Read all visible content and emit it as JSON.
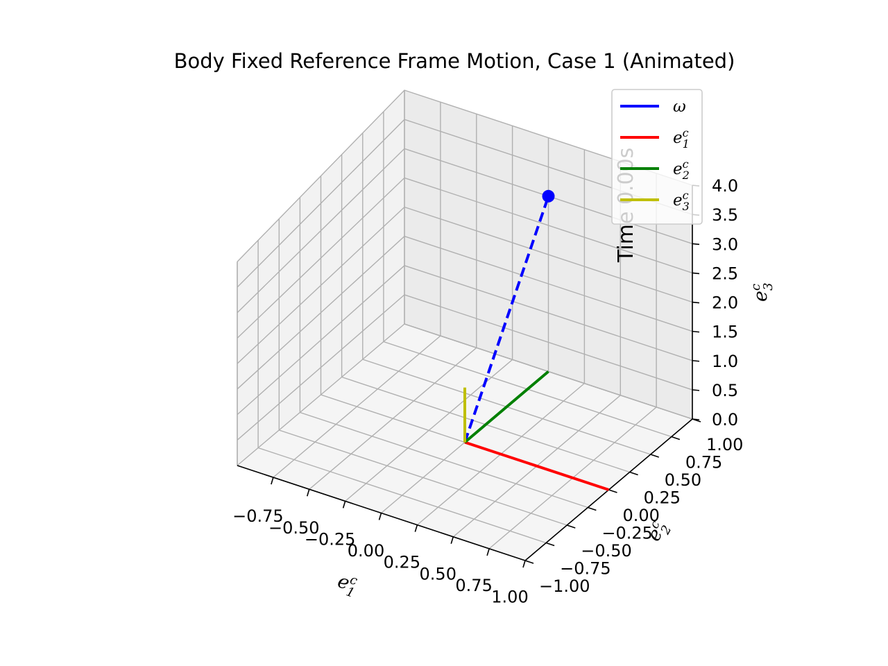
{
  "title": "Body Fixed Reference Frame Motion, Case 1 (Animated)",
  "time_text": "Time 0.00s",
  "colors": {
    "omega": "#0000ff",
    "e1": "#ff0000",
    "e2": "#008000",
    "e3": "#bfbf00",
    "pane": "#f2f2f2",
    "grid": "#b0b0b0"
  },
  "chart_data": {
    "type": "line",
    "projection": "3d",
    "title": "Body Fixed Reference Frame Motion, Case 1 (Animated)",
    "xlabel": {
      "base": "e",
      "sup": "c",
      "sub": "1"
    },
    "ylabel": {
      "base": "e",
      "sup": "c",
      "sub": "2"
    },
    "zlabel": {
      "base": "e",
      "sup": "c",
      "sub": "3"
    },
    "xlim": [
      -1.0,
      1.0
    ],
    "ylim": [
      -1.0,
      1.0
    ],
    "zlim": [
      0.0,
      4.0
    ],
    "xticks": [
      "−0.75",
      "−0.50",
      "−0.25",
      "0.00",
      "0.25",
      "0.50",
      "0.75",
      "1.00"
    ],
    "yticks": [
      "−1.00",
      "−0.75",
      "−0.50",
      "−0.25",
      "0.00",
      "0.25",
      "0.50",
      "0.75",
      "1.00"
    ],
    "zticks": [
      "0.0",
      "0.5",
      "1.0",
      "1.5",
      "2.0",
      "2.5",
      "3.0",
      "3.5",
      "4.0"
    ],
    "grid": true,
    "legend_location": "upper right",
    "series": [
      {
        "name": "ω",
        "label_base": "ω",
        "label_sup": "",
        "label_sub": "",
        "color": "#0000ff",
        "style": "solid",
        "start": [
          0,
          0,
          0
        ],
        "end": [
          0,
          0,
          0
        ]
      },
      {
        "name": "e1c",
        "label_base": "e",
        "label_sup": "c",
        "label_sub": "1",
        "color": "#ff0000",
        "style": "solid",
        "start": [
          0,
          0,
          0
        ],
        "end": [
          1,
          0,
          0
        ]
      },
      {
        "name": "e2c",
        "label_base": "e",
        "label_sup": "c",
        "label_sub": "2",
        "color": "#008000",
        "style": "solid",
        "start": [
          0,
          0,
          0
        ],
        "end": [
          0,
          1,
          0
        ]
      },
      {
        "name": "e3c",
        "label_base": "e",
        "label_sup": "c",
        "label_sub": "3",
        "color": "#bfbf00",
        "style": "solid",
        "start": [
          0,
          0,
          0
        ],
        "end": [
          0,
          0,
          1
        ]
      }
    ],
    "trajectory": {
      "color": "#0000ff",
      "style": "dashed",
      "start": [
        0,
        0,
        0
      ],
      "end": [
        0,
        1,
        3
      ],
      "marker": [
        0,
        1,
        3
      ]
    }
  }
}
